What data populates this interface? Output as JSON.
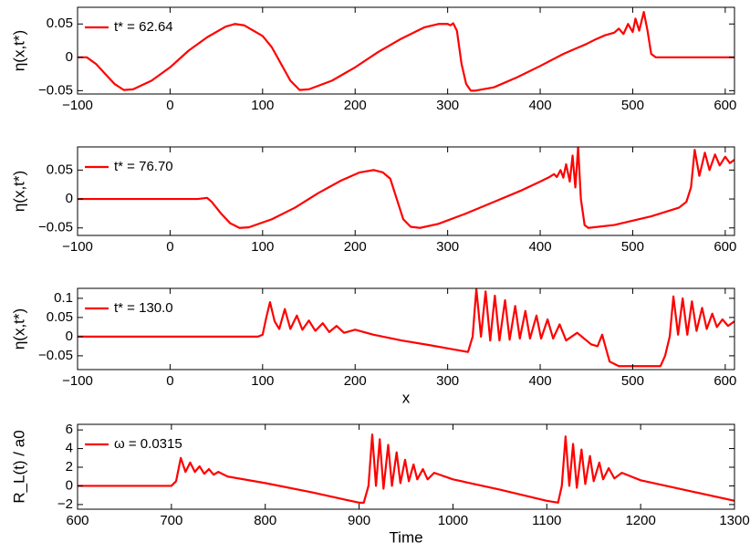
{
  "chart_data": [
    {
      "type": "line",
      "ylabel": "η(x,t*)",
      "legend": "upper left",
      "x": [
        -100,
        -90,
        -80,
        -70,
        -60,
        -50,
        -40,
        -20,
        0,
        20,
        40,
        60,
        70,
        80,
        100,
        110,
        120,
        130,
        140,
        150,
        175,
        200,
        225,
        250,
        275,
        290,
        300,
        303,
        306,
        310,
        315,
        320,
        325,
        330,
        350,
        375,
        400,
        425,
        450,
        460,
        470,
        480,
        485,
        490,
        495,
        500,
        503,
        507,
        512,
        516,
        520,
        525,
        610
      ],
      "series": [
        {
          "name": "t* = 62.64",
          "color": "#ff0000",
          "values": [
            0,
            0,
            -0.01,
            -0.025,
            -0.04,
            -0.049,
            -0.048,
            -0.035,
            -0.015,
            0.01,
            0.03,
            0.046,
            0.05,
            0.048,
            0.032,
            0.015,
            -0.01,
            -0.035,
            -0.049,
            -0.048,
            -0.035,
            -0.015,
            0.008,
            0.028,
            0.045,
            0.05,
            0.05,
            0.048,
            0.051,
            0.04,
            -0.01,
            -0.04,
            -0.05,
            -0.05,
            -0.045,
            -0.03,
            -0.013,
            0.005,
            0.02,
            0.027,
            0.033,
            0.037,
            0.043,
            0.035,
            0.05,
            0.038,
            0.058,
            0.04,
            0.068,
            0.04,
            0.005,
            0,
            0
          ]
        }
      ],
      "xlim": [
        -100,
        610
      ],
      "ylim": [
        -0.055,
        0.075
      ],
      "xticks": [
        {
          "value": -100,
          "label": "−100"
        },
        0,
        100,
        200,
        300,
        400,
        500,
        600
      ],
      "yticks": [
        {
          "value": -0.05,
          "label": "−0.05"
        },
        0,
        0.05
      ]
    },
    {
      "type": "line",
      "ylabel": "η(x,t*)",
      "legend": "upper left",
      "x": [
        -100,
        30,
        40,
        45,
        55,
        65,
        75,
        85,
        110,
        135,
        160,
        185,
        205,
        220,
        230,
        238,
        245,
        252,
        260,
        270,
        290,
        320,
        350,
        380,
        400,
        410,
        415,
        418,
        422,
        425,
        428,
        432,
        435,
        438,
        441,
        444,
        448,
        452,
        480,
        520,
        550,
        558,
        563,
        567,
        572,
        578,
        583,
        589,
        594,
        600,
        605,
        610
      ],
      "series": [
        {
          "name": "t* = 76.70",
          "color": "#ff0000",
          "values": [
            0,
            0,
            0.002,
            -0.005,
            -0.025,
            -0.042,
            -0.05,
            -0.049,
            -0.035,
            -0.015,
            0.01,
            0.032,
            0.046,
            0.05,
            0.046,
            0.035,
            0,
            -0.035,
            -0.048,
            -0.05,
            -0.043,
            -0.025,
            -0.005,
            0.015,
            0.03,
            0.038,
            0.043,
            0.038,
            0.05,
            0.037,
            0.06,
            0.03,
            0.075,
            0.02,
            0.09,
            0,
            -0.045,
            -0.05,
            -0.045,
            -0.03,
            -0.015,
            -0.005,
            0.02,
            0.085,
            0.04,
            0.08,
            0.05,
            0.077,
            0.058,
            0.073,
            0.062,
            0.068
          ]
        }
      ],
      "xlim": [
        -100,
        610
      ],
      "ylim": [
        -0.063,
        0.09
      ],
      "xticks": [
        {
          "value": -100,
          "label": "−100"
        },
        0,
        100,
        200,
        300,
        400,
        500,
        600
      ],
      "yticks": [
        {
          "value": -0.05,
          "label": "−0.05"
        },
        0,
        0.05
      ]
    },
    {
      "type": "line",
      "ylabel": "η(x,t*)",
      "xlabel": "x",
      "legend": "upper left",
      "x": [
        -100,
        95,
        100,
        104,
        108,
        113,
        118,
        124,
        130,
        137,
        143,
        150,
        157,
        165,
        172,
        180,
        188,
        200,
        220,
        250,
        280,
        310,
        322,
        327,
        331,
        336,
        341,
        346,
        351,
        356,
        362,
        367,
        373,
        378,
        384,
        389,
        396,
        401,
        408,
        414,
        421,
        428,
        440,
        455,
        462,
        467,
        471,
        475,
        485,
        530,
        535,
        540,
        544,
        549,
        554,
        559,
        564,
        569,
        575,
        580,
        586,
        591,
        597,
        603,
        610
      ],
      "series": [
        {
          "name": "t* = 130.0",
          "color": "#ff0000",
          "values": [
            0,
            0,
            0.005,
            0.05,
            0.09,
            0.04,
            0.02,
            0.072,
            0.02,
            0.055,
            0.018,
            0.042,
            0.015,
            0.035,
            0.012,
            0.028,
            0.01,
            0.018,
            0.005,
            -0.01,
            -0.022,
            -0.035,
            -0.04,
            0,
            0.125,
            0,
            0.118,
            -0.01,
            0.107,
            -0.01,
            0.095,
            -0.008,
            0.08,
            -0.005,
            0.067,
            -0.005,
            0.055,
            -0.005,
            0.045,
            -0.005,
            0.032,
            -0.01,
            0.01,
            -0.02,
            -0.025,
            0.005,
            -0.03,
            -0.065,
            -0.077,
            -0.077,
            -0.05,
            0,
            0.105,
            0.005,
            0.1,
            0.005,
            0.092,
            0.015,
            0.075,
            0.02,
            0.06,
            0.025,
            0.045,
            0.028,
            0.04
          ]
        }
      ],
      "xlim": [
        -100,
        610
      ],
      "ylim": [
        -0.086,
        0.126
      ],
      "xticks": [
        {
          "value": -100,
          "label": "−100"
        },
        0,
        100,
        200,
        300,
        400,
        500,
        600
      ],
      "yticks": [
        {
          "value": -0.05,
          "label": "−0.05"
        },
        0,
        0.05,
        0.1
      ]
    },
    {
      "type": "line",
      "ylabel": "R_L(t) / a0",
      "xlabel": "Time",
      "legend": "upper left",
      "x": [
        600,
        700,
        705,
        710,
        715,
        720,
        725,
        730,
        735,
        740,
        745,
        750,
        760,
        800,
        850,
        900,
        905,
        910,
        914,
        918,
        922,
        926,
        931,
        935,
        940,
        944,
        949,
        953,
        958,
        962,
        968,
        973,
        980,
        1000,
        1050,
        1100,
        1112,
        1116,
        1120,
        1124,
        1128,
        1132,
        1137,
        1141,
        1146,
        1150,
        1156,
        1160,
        1166,
        1172,
        1180,
        1200,
        1250,
        1300
      ],
      "series": [
        {
          "name": "ω = 0.0315",
          "color": "#ff0000",
          "values": [
            0,
            0,
            0.5,
            3.0,
            1.5,
            2.5,
            1.5,
            2.1,
            1.3,
            1.8,
            1.2,
            1.5,
            1.0,
            0.3,
            -0.7,
            -1.8,
            -1.8,
            0,
            5.5,
            0,
            5.0,
            -0.3,
            4.4,
            0,
            3.6,
            0.3,
            2.8,
            0.5,
            2.3,
            0.7,
            1.8,
            0.7,
            1.4,
            0.7,
            -0.4,
            -1.6,
            -1.8,
            0,
            5.3,
            0,
            4.5,
            -0.2,
            3.9,
            0.2,
            3.2,
            0.5,
            2.5,
            0.7,
            1.9,
            0.8,
            1.4,
            0.6,
            -0.5,
            -1.6
          ]
        }
      ],
      "xlim": [
        600,
        1300
      ],
      "ylim": [
        -2.5,
        6.6
      ],
      "xticks": [
        600,
        700,
        800,
        900,
        1000,
        1100,
        1200,
        1300
      ],
      "yticks": [
        {
          "value": -2,
          "label": "−2"
        },
        0,
        2,
        4,
        6
      ]
    }
  ]
}
